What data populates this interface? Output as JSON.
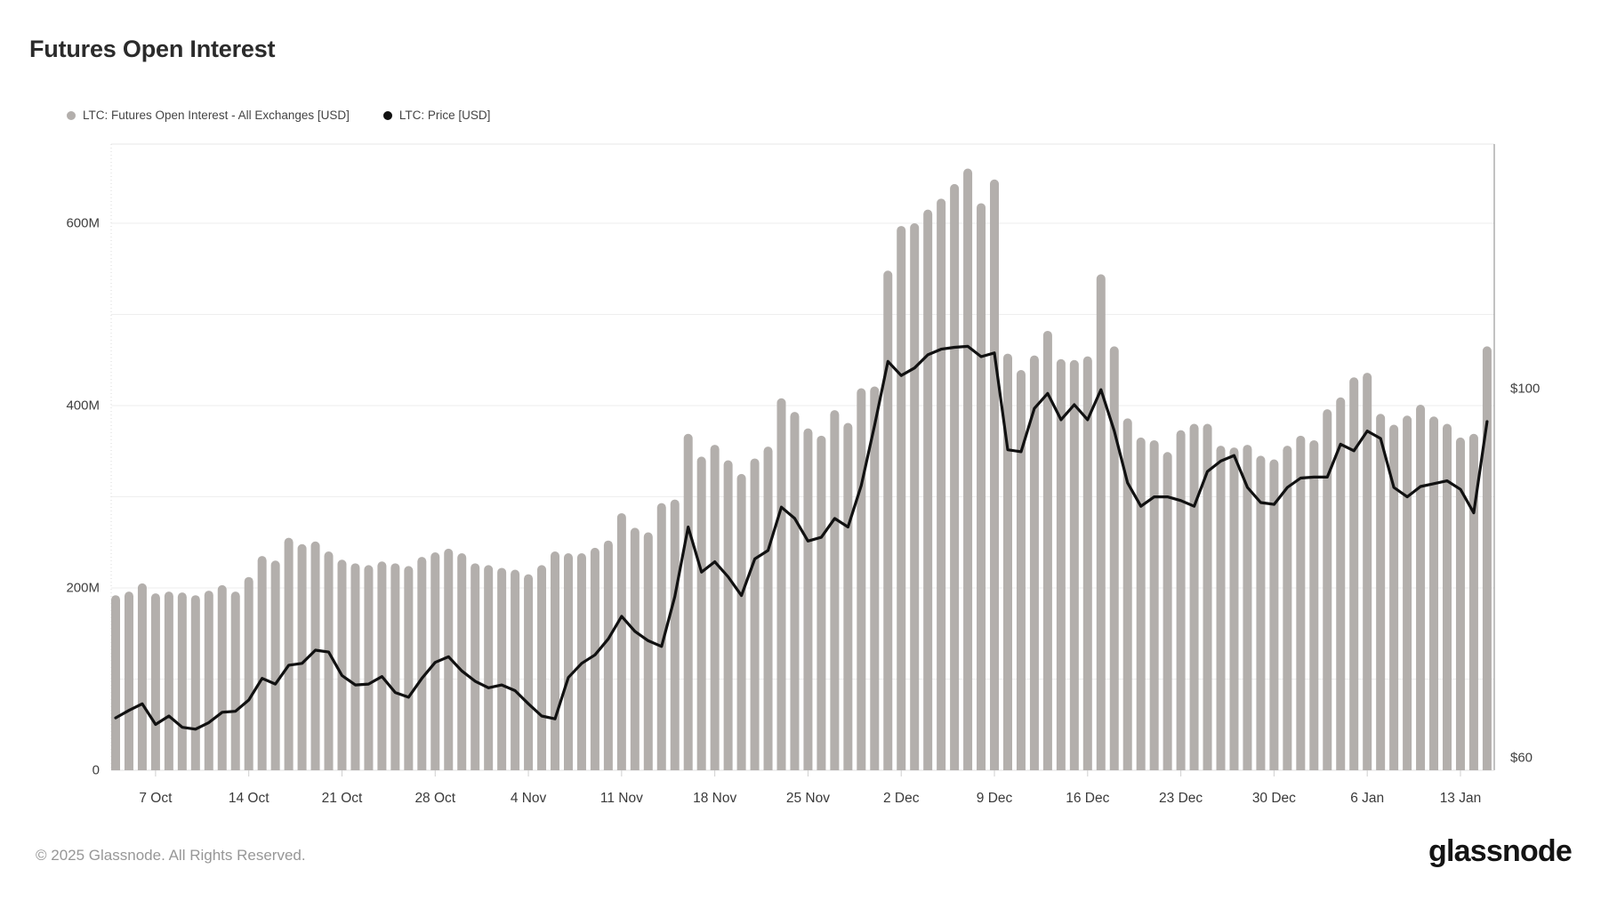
{
  "header": {
    "title": "Futures Open Interest"
  },
  "legend": [
    {
      "label": "LTC: Futures Open Interest - All Exchanges [USD]",
      "color": "#b3afac",
      "type": "bar"
    },
    {
      "label": "LTC: Price [USD]",
      "color": "#111111",
      "type": "line"
    }
  ],
  "footer": {
    "copyright": "© 2025 Glassnode. All Rights Reserved.",
    "brand": "glassnode"
  },
  "axes": {
    "left": {
      "tick_labels": [
        "0",
        "200M",
        "400M",
        "600M"
      ],
      "tick_values_millions": [
        0,
        200,
        400,
        600
      ],
      "grid_step_millions": 100
    },
    "right": {
      "tick_labels": [
        "$60",
        "$100"
      ],
      "tick_values_usd": [
        60,
        100
      ]
    },
    "x": {
      "ticks": [
        {
          "label": "7 Oct",
          "index": 3
        },
        {
          "label": "14 Oct",
          "index": 10
        },
        {
          "label": "21 Oct",
          "index": 17
        },
        {
          "label": "28 Oct",
          "index": 24
        },
        {
          "label": "4 Nov",
          "index": 31
        },
        {
          "label": "11 Nov",
          "index": 38
        },
        {
          "label": "18 Nov",
          "index": 45
        },
        {
          "label": "25 Nov",
          "index": 52
        },
        {
          "label": "2 Dec",
          "index": 59
        },
        {
          "label": "9 Dec",
          "index": 66
        },
        {
          "label": "16 Dec",
          "index": 73
        },
        {
          "label": "23 Dec",
          "index": 80
        },
        {
          "label": "30 Dec",
          "index": 87
        },
        {
          "label": "6 Jan",
          "index": 94
        },
        {
          "label": "13 Jan",
          "index": 101
        }
      ]
    }
  },
  "chart_data": {
    "type": "bar+line",
    "title": "Futures Open Interest",
    "grid": "horizontal-only",
    "legend_position": "top-left",
    "ylim_left_millions": [
      0,
      690
    ],
    "ylim_right_usd": [
      59.4,
      126
    ],
    "x_dates": [
      "2024-10-04",
      "2024-10-05",
      "2024-10-06",
      "2024-10-07",
      "2024-10-08",
      "2024-10-09",
      "2024-10-10",
      "2024-10-11",
      "2024-10-12",
      "2024-10-13",
      "2024-10-14",
      "2024-10-15",
      "2024-10-16",
      "2024-10-17",
      "2024-10-18",
      "2024-10-19",
      "2024-10-20",
      "2024-10-21",
      "2024-10-22",
      "2024-10-23",
      "2024-10-24",
      "2024-10-25",
      "2024-10-26",
      "2024-10-27",
      "2024-10-28",
      "2024-10-29",
      "2024-10-30",
      "2024-10-31",
      "2024-11-01",
      "2024-11-02",
      "2024-11-03",
      "2024-11-04",
      "2024-11-05",
      "2024-11-06",
      "2024-11-07",
      "2024-11-08",
      "2024-11-09",
      "2024-11-10",
      "2024-11-11",
      "2024-11-12",
      "2024-11-13",
      "2024-11-14",
      "2024-11-15",
      "2024-11-16",
      "2024-11-17",
      "2024-11-18",
      "2024-11-19",
      "2024-11-20",
      "2024-11-21",
      "2024-11-22",
      "2024-11-23",
      "2024-11-24",
      "2024-11-25",
      "2024-11-26",
      "2024-11-27",
      "2024-11-28",
      "2024-11-29",
      "2024-11-30",
      "2024-12-01",
      "2024-12-02",
      "2024-12-03",
      "2024-12-04",
      "2024-12-05",
      "2024-12-06",
      "2024-12-07",
      "2024-12-08",
      "2024-12-09",
      "2024-12-10",
      "2024-12-11",
      "2024-12-12",
      "2024-12-13",
      "2024-12-14",
      "2024-12-15",
      "2024-12-16",
      "2024-12-17",
      "2024-12-18",
      "2024-12-19",
      "2024-12-20",
      "2024-12-21",
      "2024-12-22",
      "2024-12-23",
      "2024-12-24",
      "2024-12-25",
      "2024-12-26",
      "2024-12-27",
      "2024-12-28",
      "2024-12-29",
      "2024-12-30",
      "2024-12-31",
      "2025-01-01",
      "2025-01-02",
      "2025-01-03",
      "2025-01-04",
      "2025-01-05",
      "2025-01-06",
      "2025-01-07",
      "2025-01-08",
      "2025-01-09",
      "2025-01-10",
      "2025-01-11",
      "2025-01-12",
      "2025-01-13",
      "2025-01-14",
      "2025-01-15"
    ],
    "series": [
      {
        "name": "LTC: Futures Open Interest - All Exchanges [USD]",
        "type": "bar",
        "axis": "left",
        "unit": "USD millions",
        "color": "#b3afac",
        "values_millions": [
          192,
          196,
          205,
          194,
          196,
          195,
          192,
          197,
          203,
          196,
          212,
          235,
          230,
          255,
          248,
          251,
          240,
          231,
          227,
          225,
          229,
          227,
          224,
          234,
          239,
          243,
          238,
          227,
          225,
          222,
          220,
          215,
          225,
          240,
          238,
          238,
          244,
          252,
          282,
          266,
          261,
          293,
          297,
          369,
          344,
          357,
          340,
          325,
          342,
          355,
          408,
          393,
          375,
          367,
          395,
          381,
          419,
          421,
          548,
          597,
          600,
          615,
          627,
          643,
          660,
          622,
          648,
          457,
          439,
          455,
          482,
          451,
          450,
          454,
          544,
          465,
          386,
          365,
          362,
          349,
          373,
          380,
          380,
          356,
          354,
          357,
          345,
          341,
          356,
          367,
          362,
          396,
          409,
          431,
          436,
          391,
          379,
          389,
          401,
          388,
          380,
          365,
          369,
          465
        ]
      },
      {
        "name": "LTC: Price [USD]",
        "type": "line",
        "axis": "right",
        "unit": "USD",
        "color": "#111111",
        "values": [
          65.0,
          65.8,
          66.5,
          64.3,
          65.2,
          64.0,
          63.8,
          64.5,
          65.6,
          65.7,
          66.9,
          69.2,
          68.6,
          70.6,
          70.8,
          72.2,
          72.0,
          69.5,
          68.5,
          68.6,
          69.4,
          67.7,
          67.2,
          69.2,
          70.9,
          71.5,
          70.0,
          68.9,
          68.2,
          68.5,
          67.9,
          66.5,
          65.2,
          64.9,
          69.3,
          70.8,
          71.7,
          73.4,
          75.8,
          74.2,
          73.2,
          72.6,
          77.9,
          85.3,
          80.5,
          81.6,
          80.0,
          78.0,
          81.9,
          82.8,
          87.4,
          86.2,
          83.8,
          84.2,
          86.2,
          85.3,
          89.7,
          96.1,
          102.9,
          101.4,
          102.2,
          103.6,
          104.2,
          104.4,
          104.5,
          103.4,
          103.8,
          93.5,
          93.3,
          97.9,
          99.5,
          96.7,
          98.3,
          96.7,
          99.9,
          95.5,
          90.0,
          87.5,
          88.5,
          88.5,
          88.1,
          87.5,
          91.2,
          92.3,
          92.9,
          89.5,
          87.9,
          87.7,
          89.5,
          90.5,
          90.6,
          90.6,
          94.1,
          93.4,
          95.5,
          94.7,
          89.5,
          88.5,
          89.6,
          89.9,
          90.2,
          89.3,
          86.8,
          96.5
        ]
      }
    ]
  }
}
